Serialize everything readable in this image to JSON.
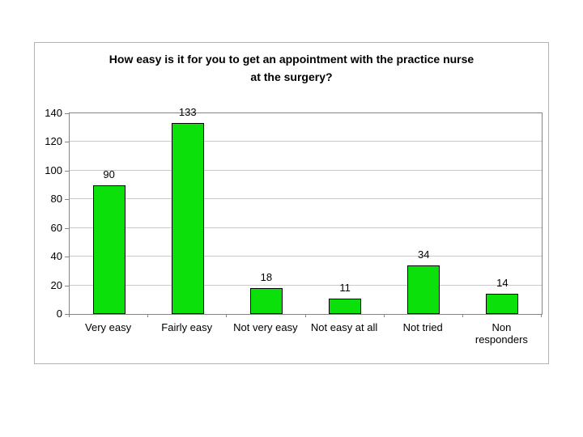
{
  "chart": {
    "title_lines": [
      "How easy is it for you to get an appointment with the practice nurse",
      "at the surgery?"
    ]
  },
  "chart_data": {
    "type": "bar",
    "title": "How easy is it for you to get an appointment with the practice nurse at the surgery?",
    "categories": [
      "Very easy",
      "Fairly easy",
      "Not very easy",
      "Not easy at all",
      "Not tried",
      "Non responders"
    ],
    "values": [
      90,
      133,
      18,
      11,
      34,
      14
    ],
    "data_labels": [
      "90",
      "133",
      "18",
      "11",
      "34",
      "14"
    ],
    "x_tick_labels": [
      [
        "Very easy"
      ],
      [
        "Fairly easy"
      ],
      [
        "Not very easy"
      ],
      [
        "Not easy at all"
      ],
      [
        "Not tried"
      ],
      [
        "Non",
        "responders"
      ]
    ],
    "xlabel": "",
    "ylabel": "",
    "ylim": [
      0,
      140
    ],
    "yticks": [
      0,
      20,
      40,
      60,
      80,
      100,
      120,
      140
    ],
    "grid": true,
    "legend": false,
    "legend_position": "none",
    "colors": {
      "bar_fill": "#0be00b",
      "bar_border": "#000000",
      "gridline": "#c9c9c9",
      "axis": "#848484",
      "frame_border": "#b3b3b3",
      "text": "#000000",
      "background": "#ffffff"
    }
  }
}
